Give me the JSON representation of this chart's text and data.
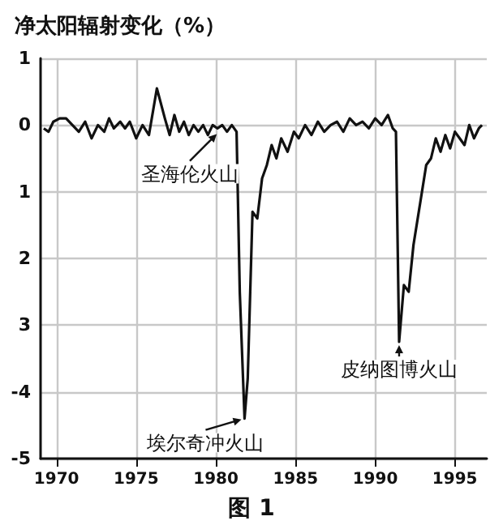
{
  "chart_data": {
    "type": "line",
    "title": "净太阳辐射变化（%）",
    "x": [
      1969.2,
      1969.5,
      1969.8,
      1970.2,
      1970.6,
      1971,
      1971.4,
      1971.8,
      1972.2,
      1972.6,
      1973,
      1973.3,
      1973.6,
      1974,
      1974.3,
      1974.6,
      1975,
      1975.4,
      1975.8,
      1976.3,
      1976.8,
      1977.1,
      1977.4,
      1977.7,
      1978,
      1978.3,
      1978.6,
      1978.9,
      1979.2,
      1979.5,
      1979.8,
      1980.1,
      1980.4,
      1980.7,
      1981,
      1981.3,
      1981.5,
      1981.8,
      1982,
      1982.3,
      1982.6,
      1982.9,
      1983.2,
      1983.5,
      1983.8,
      1984.1,
      1984.5,
      1984.9,
      1985.2,
      1985.6,
      1986,
      1986.4,
      1986.8,
      1987.2,
      1987.6,
      1988,
      1988.4,
      1988.8,
      1989.2,
      1989.6,
      1990,
      1990.4,
      1990.8,
      1991.1,
      1991.3,
      1991.5,
      1991.8,
      1992.1,
      1992.4,
      1992.8,
      1993.2,
      1993.5,
      1993.8,
      1994.1,
      1994.4,
      1994.7,
      1995,
      1995.3,
      1995.6,
      1995.9,
      1996.2,
      1996.5,
      1996.7
    ],
    "values": [
      -0.05,
      -0.1,
      0.05,
      0.1,
      0.1,
      0.0,
      -0.1,
      0.05,
      -0.2,
      0.0,
      -0.1,
      0.1,
      -0.05,
      0.05,
      -0.05,
      0.05,
      -0.2,
      0.0,
      -0.15,
      0.55,
      0.1,
      -0.15,
      0.15,
      -0.1,
      0.05,
      -0.15,
      0.0,
      -0.1,
      0.0,
      -0.15,
      0.0,
      -0.05,
      0.0,
      -0.1,
      0.0,
      -0.1,
      -2.5,
      -4.4,
      -3.8,
      -1.3,
      -1.4,
      -0.8,
      -0.6,
      -0.3,
      -0.5,
      -0.2,
      -0.4,
      -0.1,
      -0.2,
      0.0,
      -0.15,
      0.05,
      -0.1,
      0.0,
      0.05,
      -0.1,
      0.1,
      0.0,
      0.05,
      -0.05,
      0.1,
      0.0,
      0.15,
      -0.05,
      -0.1,
      -3.25,
      -2.4,
      -2.5,
      -1.8,
      -1.2,
      -0.6,
      -0.5,
      -0.2,
      -0.4,
      -0.15,
      -0.35,
      -0.1,
      -0.2,
      -0.3,
      0.0,
      -0.2,
      -0.05,
      0.0
    ],
    "color": "#111111",
    "marker": "none",
    "line_style": "solid",
    "xlim": [
      1969,
      1997
    ],
    "xticks": [
      1970,
      1975,
      1980,
      1985,
      1990,
      1995
    ],
    "ylim": [
      -5,
      1
    ],
    "yticks": [
      1,
      0,
      {
        "value": -1,
        "label": "1"
      },
      {
        "value": -2,
        "label": "2"
      },
      {
        "value": -3,
        "label": "3"
      },
      -4,
      -5
    ],
    "grid": true,
    "annotations": [
      {
        "text": "圣海伦火山",
        "x": 1980.2,
        "y": -0.1
      },
      {
        "text": "埃尔奇冲火山",
        "x": 1981.8,
        "y": -4.4
      },
      {
        "text": "皮纳图博火山",
        "x": 1991.5,
        "y": -3.25
      },
      "图 1"
    ]
  }
}
